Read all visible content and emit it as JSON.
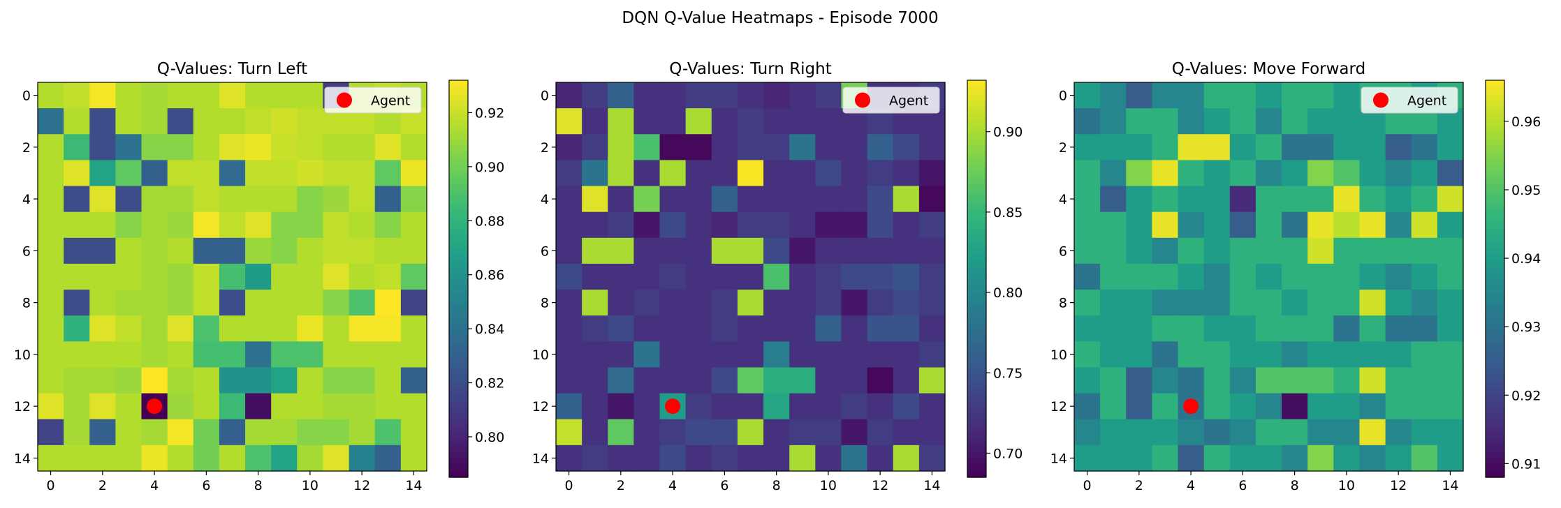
{
  "suptitle": "DQN Q-Value Heatmaps - Episode 7000",
  "colors": {
    "viridis": [
      "#440154",
      "#482878",
      "#3e4989",
      "#31688e",
      "#26828e",
      "#1f9e89",
      "#35b779",
      "#6ece58",
      "#b5de2b",
      "#fde725"
    ],
    "agent_marker": "#ff0000"
  },
  "chart_data": [
    {
      "type": "heatmap",
      "title": "Q-Values: Turn Left",
      "colormap": "viridis",
      "xticks": [
        0,
        2,
        4,
        6,
        8,
        10,
        12,
        14
      ],
      "yticks": [
        0,
        2,
        4,
        6,
        8,
        10,
        12,
        14
      ],
      "xlim": [
        -0.5,
        14.5
      ],
      "ylim": [
        14.5,
        -0.5
      ],
      "vmin": 0.785,
      "vmax": 0.932,
      "colorbar_ticks": [
        0.8,
        0.82,
        0.84,
        0.86,
        0.88,
        0.9,
        0.92
      ],
      "colorbar_labels": [
        "0.80",
        "0.82",
        "0.84",
        "0.86",
        "0.88",
        "0.90",
        "0.92"
      ],
      "legend": {
        "label": "Agent",
        "position": "top-right"
      },
      "agent": {
        "x": 4,
        "y": 12
      },
      "values": [
        [
          0.915,
          0.918,
          0.93,
          0.915,
          0.912,
          0.915,
          0.915,
          0.925,
          0.915,
          0.915,
          0.915,
          0.81,
          0.915,
          0.918,
          0.915
        ],
        [
          0.84,
          0.915,
          0.82,
          0.915,
          0.912,
          0.82,
          0.915,
          0.915,
          0.918,
          0.922,
          0.918,
          0.918,
          0.918,
          0.915,
          0.92
        ],
        [
          0.915,
          0.885,
          0.82,
          0.84,
          0.905,
          0.905,
          0.915,
          0.925,
          0.928,
          0.92,
          0.918,
          0.915,
          0.915,
          0.925,
          0.915
        ],
        [
          0.915,
          0.925,
          0.87,
          0.895,
          0.83,
          0.918,
          0.918,
          0.835,
          0.918,
          0.918,
          0.922,
          0.918,
          0.918,
          0.895,
          0.928
        ],
        [
          0.915,
          0.82,
          0.925,
          0.82,
          0.912,
          0.912,
          0.918,
          0.915,
          0.915,
          0.915,
          0.905,
          0.91,
          0.918,
          0.83,
          0.905
        ],
        [
          0.915,
          0.915,
          0.915,
          0.905,
          0.912,
          0.91,
          0.93,
          0.918,
          0.925,
          0.905,
          0.905,
          0.918,
          0.915,
          0.905,
          0.915
        ],
        [
          0.915,
          0.82,
          0.82,
          0.915,
          0.912,
          0.915,
          0.83,
          0.83,
          0.91,
          0.905,
          0.915,
          0.918,
          0.918,
          0.915,
          0.915
        ],
        [
          0.915,
          0.915,
          0.915,
          0.915,
          0.912,
          0.91,
          0.918,
          0.888,
          0.865,
          0.915,
          0.915,
          0.925,
          0.915,
          0.918,
          0.895
        ],
        [
          0.915,
          0.82,
          0.915,
          0.912,
          0.912,
          0.91,
          0.918,
          0.82,
          0.915,
          0.915,
          0.915,
          0.905,
          0.89,
          0.932,
          0.815
        ],
        [
          0.915,
          0.88,
          0.925,
          0.918,
          0.912,
          0.925,
          0.89,
          0.915,
          0.915,
          0.915,
          0.928,
          0.915,
          0.93,
          0.93,
          0.915
        ],
        [
          0.915,
          0.915,
          0.915,
          0.915,
          0.912,
          0.915,
          0.888,
          0.888,
          0.84,
          0.89,
          0.89,
          0.915,
          0.915,
          0.915,
          0.915
        ],
        [
          0.915,
          0.912,
          0.912,
          0.91,
          0.932,
          0.912,
          0.915,
          0.86,
          0.86,
          0.87,
          0.915,
          0.905,
          0.905,
          0.915,
          0.83
        ],
        [
          0.925,
          0.912,
          0.925,
          0.915,
          0.785,
          0.91,
          0.915,
          0.885,
          0.79,
          0.915,
          0.915,
          0.912,
          0.912,
          0.915,
          0.915
        ],
        [
          0.815,
          0.912,
          0.83,
          0.915,
          0.912,
          0.93,
          0.9,
          0.83,
          0.912,
          0.912,
          0.905,
          0.905,
          0.912,
          0.89,
          0.915
        ],
        [
          0.915,
          0.915,
          0.915,
          0.915,
          0.928,
          0.915,
          0.9,
          0.915,
          0.89,
          0.87,
          0.912,
          0.925,
          0.85,
          0.83,
          0.915
        ]
      ]
    },
    {
      "type": "heatmap",
      "title": "Q-Values: Turn Right",
      "colormap": "viridis",
      "xticks": [
        0,
        2,
        4,
        6,
        8,
        10,
        12,
        14
      ],
      "yticks": [
        0,
        2,
        4,
        6,
        8,
        10,
        12,
        14
      ],
      "xlim": [
        -0.5,
        14.5
      ],
      "ylim": [
        14.5,
        -0.5
      ],
      "vmin": 0.685,
      "vmax": 0.932,
      "colorbar_ticks": [
        0.7,
        0.75,
        0.8,
        0.85,
        0.9
      ],
      "colorbar_labels": [
        "0.70",
        "0.75",
        "0.80",
        "0.85",
        "0.90"
      ],
      "legend": {
        "label": "Agent",
        "position": "top-right"
      },
      "agent": {
        "x": 4,
        "y": 12
      },
      "values": [
        [
          0.71,
          0.73,
          0.76,
          0.72,
          0.72,
          0.73,
          0.73,
          0.72,
          0.71,
          0.72,
          0.73,
          0.88,
          0.72,
          0.72,
          0.73
        ],
        [
          0.92,
          0.72,
          0.9,
          0.72,
          0.72,
          0.9,
          0.72,
          0.73,
          0.72,
          0.72,
          0.72,
          0.72,
          0.73,
          0.72,
          0.72
        ],
        [
          0.71,
          0.73,
          0.9,
          0.86,
          0.69,
          0.69,
          0.72,
          0.73,
          0.73,
          0.78,
          0.72,
          0.72,
          0.76,
          0.74,
          0.72
        ],
        [
          0.73,
          0.78,
          0.9,
          0.72,
          0.9,
          0.72,
          0.72,
          0.93,
          0.72,
          0.72,
          0.74,
          0.72,
          0.73,
          0.72,
          0.7
        ],
        [
          0.72,
          0.92,
          0.72,
          0.88,
          0.72,
          0.72,
          0.76,
          0.72,
          0.72,
          0.72,
          0.72,
          0.72,
          0.74,
          0.9,
          0.69
        ],
        [
          0.72,
          0.72,
          0.73,
          0.7,
          0.74,
          0.72,
          0.71,
          0.73,
          0.73,
          0.72,
          0.7,
          0.7,
          0.74,
          0.72,
          0.73
        ],
        [
          0.72,
          0.9,
          0.9,
          0.72,
          0.72,
          0.72,
          0.9,
          0.9,
          0.74,
          0.7,
          0.72,
          0.72,
          0.72,
          0.72,
          0.72
        ],
        [
          0.74,
          0.72,
          0.72,
          0.72,
          0.73,
          0.72,
          0.72,
          0.72,
          0.86,
          0.72,
          0.73,
          0.74,
          0.74,
          0.75,
          0.73
        ],
        [
          0.72,
          0.9,
          0.72,
          0.73,
          0.72,
          0.72,
          0.73,
          0.9,
          0.72,
          0.72,
          0.73,
          0.7,
          0.73,
          0.74,
          0.73
        ],
        [
          0.72,
          0.73,
          0.74,
          0.72,
          0.72,
          0.72,
          0.73,
          0.72,
          0.72,
          0.72,
          0.76,
          0.72,
          0.75,
          0.75,
          0.72
        ],
        [
          0.72,
          0.72,
          0.72,
          0.78,
          0.72,
          0.72,
          0.72,
          0.72,
          0.79,
          0.72,
          0.72,
          0.72,
          0.72,
          0.72,
          0.73
        ],
        [
          0.72,
          0.72,
          0.77,
          0.72,
          0.72,
          0.72,
          0.74,
          0.87,
          0.84,
          0.84,
          0.72,
          0.72,
          0.69,
          0.72,
          0.9
        ],
        [
          0.76,
          0.72,
          0.7,
          0.72,
          0.82,
          0.73,
          0.72,
          0.72,
          0.83,
          0.72,
          0.72,
          0.73,
          0.72,
          0.74,
          0.72
        ],
        [
          0.91,
          0.72,
          0.87,
          0.72,
          0.73,
          0.74,
          0.74,
          0.9,
          0.72,
          0.73,
          0.73,
          0.7,
          0.73,
          0.72,
          0.72
        ],
        [
          0.72,
          0.73,
          0.72,
          0.72,
          0.74,
          0.72,
          0.73,
          0.72,
          0.72,
          0.9,
          0.72,
          0.78,
          0.72,
          0.9,
          0.73
        ]
      ]
    },
    {
      "type": "heatmap",
      "title": "Q-Values: Move Forward",
      "colormap": "viridis",
      "xticks": [
        0,
        2,
        4,
        6,
        8,
        10,
        12,
        14
      ],
      "yticks": [
        0,
        2,
        4,
        6,
        8,
        10,
        12,
        14
      ],
      "xlim": [
        -0.5,
        14.5
      ],
      "ylim": [
        14.5,
        -0.5
      ],
      "vmin": 0.908,
      "vmax": 0.966,
      "colorbar_ticks": [
        0.91,
        0.92,
        0.93,
        0.94,
        0.95,
        0.96
      ],
      "colorbar_labels": [
        "0.91",
        "0.92",
        "0.93",
        "0.94",
        "0.95",
        "0.96"
      ],
      "legend": {
        "label": "Agent",
        "position": "top-right"
      },
      "agent": {
        "x": 4,
        "y": 12
      },
      "values": [
        [
          0.94,
          0.935,
          0.925,
          0.935,
          0.935,
          0.945,
          0.945,
          0.94,
          0.945,
          0.945,
          0.94,
          0.945,
          0.945,
          0.94,
          0.945
        ],
        [
          0.93,
          0.935,
          0.945,
          0.945,
          0.935,
          0.94,
          0.945,
          0.935,
          0.945,
          0.94,
          0.94,
          0.94,
          0.945,
          0.945,
          0.94
        ],
        [
          0.94,
          0.94,
          0.94,
          0.945,
          0.964,
          0.964,
          0.94,
          0.945,
          0.93,
          0.93,
          0.94,
          0.94,
          0.925,
          0.93,
          0.94
        ],
        [
          0.945,
          0.935,
          0.955,
          0.964,
          0.945,
          0.94,
          0.945,
          0.935,
          0.94,
          0.955,
          0.95,
          0.94,
          0.935,
          0.94,
          0.925
        ],
        [
          0.945,
          0.925,
          0.94,
          0.945,
          0.94,
          0.94,
          0.915,
          0.945,
          0.945,
          0.945,
          0.964,
          0.945,
          0.94,
          0.945,
          0.962
        ],
        [
          0.945,
          0.945,
          0.94,
          0.964,
          0.935,
          0.94,
          0.925,
          0.945,
          0.93,
          0.964,
          0.96,
          0.964,
          0.935,
          0.962,
          0.94
        ],
        [
          0.945,
          0.945,
          0.94,
          0.935,
          0.945,
          0.94,
          0.945,
          0.945,
          0.945,
          0.962,
          0.945,
          0.945,
          0.945,
          0.945,
          0.945
        ],
        [
          0.93,
          0.945,
          0.945,
          0.945,
          0.94,
          0.935,
          0.945,
          0.94,
          0.945,
          0.945,
          0.945,
          0.94,
          0.935,
          0.94,
          0.945
        ],
        [
          0.945,
          0.94,
          0.94,
          0.935,
          0.935,
          0.935,
          0.945,
          0.945,
          0.94,
          0.945,
          0.945,
          0.962,
          0.94,
          0.935,
          0.94
        ],
        [
          0.94,
          0.94,
          0.94,
          0.945,
          0.945,
          0.94,
          0.94,
          0.945,
          0.945,
          0.945,
          0.93,
          0.945,
          0.93,
          0.93,
          0.94
        ],
        [
          0.945,
          0.94,
          0.94,
          0.93,
          0.945,
          0.945,
          0.94,
          0.94,
          0.935,
          0.94,
          0.94,
          0.94,
          0.94,
          0.945,
          0.945
        ],
        [
          0.94,
          0.945,
          0.925,
          0.935,
          0.93,
          0.945,
          0.935,
          0.95,
          0.95,
          0.95,
          0.945,
          0.962,
          0.945,
          0.945,
          0.945
        ],
        [
          0.93,
          0.945,
          0.925,
          0.945,
          0.93,
          0.945,
          0.94,
          0.935,
          0.91,
          0.94,
          0.94,
          0.935,
          0.945,
          0.945,
          0.945
        ],
        [
          0.935,
          0.94,
          0.94,
          0.94,
          0.935,
          0.93,
          0.935,
          0.945,
          0.945,
          0.935,
          0.935,
          0.964,
          0.935,
          0.94,
          0.94
        ],
        [
          0.94,
          0.94,
          0.94,
          0.945,
          0.925,
          0.945,
          0.94,
          0.94,
          0.935,
          0.955,
          0.94,
          0.935,
          0.94,
          0.95,
          0.94
        ]
      ]
    }
  ]
}
